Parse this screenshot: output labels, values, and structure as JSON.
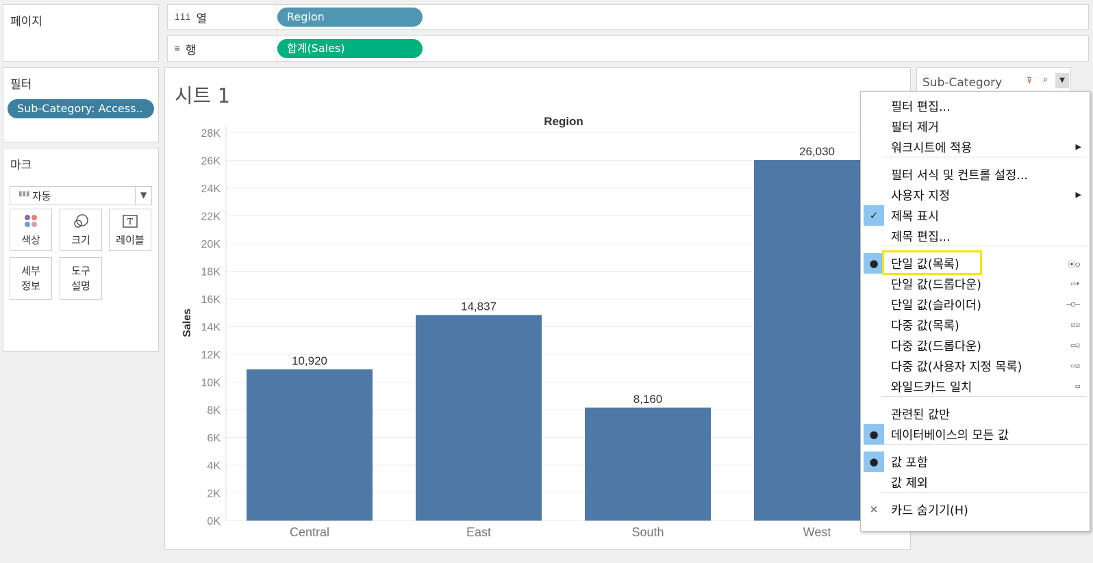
{
  "pages_panel": {
    "title": "페이지"
  },
  "columns_shelf": {
    "label": "열",
    "icon": "iii",
    "pill": "Region",
    "pill_color": "#4f97b3"
  },
  "rows_shelf": {
    "label": "행",
    "icon": "≡",
    "pill": "합계(Sales)",
    "pill_color": "#00b180"
  },
  "filters_panel": {
    "title": "필터",
    "pill": "Sub-Category: Access..",
    "pill_color": "#3d7f9e"
  },
  "marks_panel": {
    "title": "마크",
    "mark_type": "자동",
    "buttons": [
      {
        "label": "색상",
        "icon": "color-icon"
      },
      {
        "label": "크기",
        "icon": "size-icon"
      },
      {
        "label": "레이블",
        "icon": "label-icon"
      },
      {
        "label1": "세부",
        "label2": "정보",
        "icon": "detail-icon"
      },
      {
        "label1": "도구",
        "label2": "설명",
        "icon": "tooltip-icon"
      }
    ]
  },
  "sheet": {
    "title": "시트 1"
  },
  "filter_card": {
    "title": "Sub-Category"
  },
  "chart_data": {
    "type": "bar",
    "title": "Region",
    "xlabel": "",
    "ylabel": "Sales",
    "categories": [
      "Central",
      "East",
      "South",
      "West"
    ],
    "values": [
      10920,
      14837,
      8160,
      26030
    ],
    "value_labels": [
      "10,920",
      "14,837",
      "8,160",
      "26,030"
    ],
    "ylim": [
      0,
      28000
    ],
    "yticks": [
      0,
      2000,
      4000,
      6000,
      8000,
      10000,
      12000,
      14000,
      16000,
      18000,
      20000,
      22000,
      24000,
      26000,
      28000
    ],
    "ytick_labels": [
      "0K",
      "2K",
      "4K",
      "6K",
      "8K",
      "10K",
      "12K",
      "14K",
      "16K",
      "18K",
      "20K",
      "22K",
      "24K",
      "26K",
      "28K"
    ],
    "bar_color": "#4e79a7",
    "grid": true
  },
  "context_menu": {
    "items": [
      {
        "label": "필터 편집..."
      },
      {
        "label": "필터 제거"
      },
      {
        "label": "워크시트에 적용",
        "submenu": true
      },
      {
        "label": "필터 서식 및 컨트롤 설정..."
      },
      {
        "label": "사용자 지정",
        "submenu": true
      },
      {
        "label": "제목 표시",
        "checked": "check"
      },
      {
        "label": "제목 편집..."
      },
      {
        "label": "단일 값(목록)",
        "checked": "dot",
        "control": "⦿○",
        "highlighted": true
      },
      {
        "label": "단일 값(드롭다운)",
        "control": "▭▾"
      },
      {
        "label": "단일 값(슬라이더)",
        "control": "–○–"
      },
      {
        "label": "다중 값(목록)",
        "control": "☑☑"
      },
      {
        "label": "다중 값(드롭다운)",
        "control": "▭☑"
      },
      {
        "label": "다중 값(사용자 지정 목록)",
        "control": "▭☑"
      },
      {
        "label": "와일드카드 일치",
        "control": "▭"
      },
      {
        "label": "관련된 값만"
      },
      {
        "label": "데이터베이스의 모든 값",
        "checked": "dot"
      },
      {
        "label": "값 포함",
        "checked": "dot"
      },
      {
        "label": "값 제외"
      },
      {
        "label": "카드 숨기기(H)",
        "checked": "x"
      }
    ]
  }
}
